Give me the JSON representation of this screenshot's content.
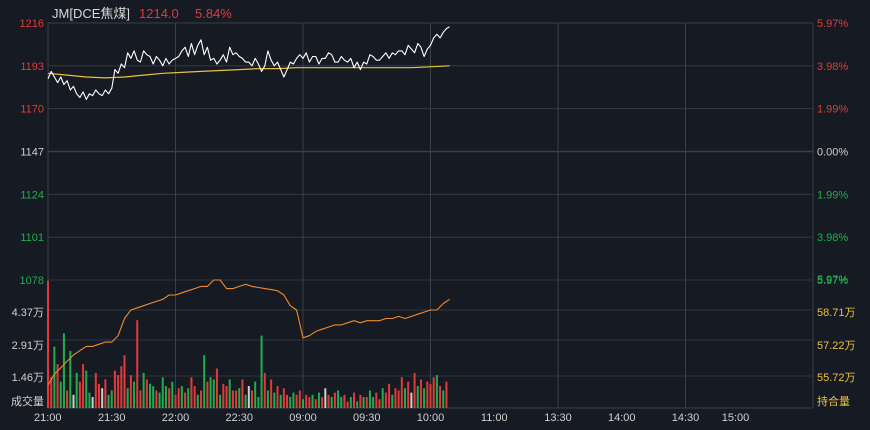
{
  "header": {
    "symbol": "JM[DCE焦煤]",
    "price": "1214.0",
    "change_pct": "5.84%"
  },
  "colors": {
    "background": "#161a22",
    "grid": "#3a3f48",
    "up": "#e03a3a",
    "down": "#1fae4e",
    "neutral": "#cfcfcf",
    "price_line": "#ffffff",
    "avg_line": "#e8c23a",
    "oi_line": "#f08a2c",
    "volume_label": "#d0d0d0",
    "oi_label": "#e8c23a"
  },
  "chart_data": [
    {
      "type": "line",
      "panel": "price",
      "y_ticks_left": [
        "1216",
        "1193",
        "1170",
        "1147",
        "1124",
        "1101",
        "1078"
      ],
      "y_ticks_right": [
        "5.97%",
        "3.98%",
        "1.99%",
        "0.00%",
        "1.99%",
        "3.98%",
        "5.97%"
      ],
      "ylim": [
        1078,
        1216
      ],
      "reference_price": 1147,
      "x_tick_labels": [
        "21:00",
        "21:30",
        "22:00",
        "22:30",
        "09:00",
        "09:30",
        "10:00",
        "11:00",
        "13:30",
        "14:00",
        "14:30",
        "15:00"
      ],
      "x_session_count": 12,
      "x_end": 6.3,
      "series": [
        {
          "role": "price",
          "x": [
            0,
            0.05,
            0.1,
            0.15,
            0.2,
            0.25,
            0.3,
            0.35,
            0.4,
            0.45,
            0.5,
            0.55,
            0.6,
            0.65,
            0.7,
            0.75,
            0.8,
            0.85,
            0.9,
            0.95,
            1.0,
            1.05,
            1.1,
            1.15,
            1.2,
            1.25,
            1.3,
            1.35,
            1.4,
            1.45,
            1.5,
            1.55,
            1.6,
            1.65,
            1.7,
            1.75,
            1.8,
            1.85,
            1.9,
            1.95,
            2.0,
            2.05,
            2.1,
            2.15,
            2.2,
            2.25,
            2.3,
            2.35,
            2.4,
            2.45,
            2.5,
            2.55,
            2.6,
            2.65,
            2.7,
            2.75,
            2.8,
            2.85,
            2.9,
            2.95,
            3.0,
            3.05,
            3.1,
            3.15,
            3.2,
            3.25,
            3.3,
            3.35,
            3.4,
            3.45,
            3.5,
            3.55,
            3.6,
            3.65,
            3.7,
            3.75,
            3.8,
            3.85,
            3.9,
            3.95,
            4.0,
            4.05,
            4.1,
            4.15,
            4.2,
            4.25,
            4.3,
            4.35,
            4.4,
            4.45,
            4.5,
            4.55,
            4.6,
            4.65,
            4.7,
            4.75,
            4.8,
            4.85,
            4.9,
            4.95,
            5.0,
            5.05,
            5.1,
            5.15,
            5.2,
            5.25,
            5.3,
            5.35,
            5.4,
            5.45,
            5.5,
            5.55,
            5.6,
            5.65,
            5.7,
            5.75,
            5.8,
            5.85,
            5.9,
            5.95,
            6.0,
            6.05,
            6.1,
            6.15,
            6.2,
            6.25,
            6.3
          ],
          "values": [
            1186,
            1190,
            1187,
            1184,
            1187,
            1183,
            1185,
            1180,
            1182,
            1178,
            1176,
            1179,
            1175,
            1178,
            1177,
            1180,
            1178,
            1177,
            1180,
            1178,
            1181,
            1191,
            1189,
            1194,
            1192,
            1200,
            1197,
            1201,
            1196,
            1195,
            1201,
            1199,
            1198,
            1194,
            1198,
            1196,
            1193,
            1197,
            1194,
            1196,
            1197,
            1198,
            1201,
            1203,
            1198,
            1205,
            1199,
            1204,
            1207,
            1199,
            1203,
            1196,
            1197,
            1194,
            1196,
            1199,
            1195,
            1203,
            1199,
            1200,
            1198,
            1197,
            1195,
            1195,
            1193,
            1197,
            1194,
            1190,
            1193,
            1201,
            1196,
            1193,
            1195,
            1191,
            1187,
            1191,
            1195,
            1194,
            1197,
            1199,
            1197,
            1200,
            1195,
            1198,
            1198,
            1194,
            1197,
            1197,
            1200,
            1199,
            1195,
            1195,
            1198,
            1196,
            1195,
            1197,
            1192,
            1195,
            1191,
            1195,
            1194,
            1199,
            1198,
            1196,
            1196,
            1198,
            1200,
            1197,
            1200,
            1199,
            1201,
            1201,
            1199,
            1204,
            1202,
            1200,
            1205,
            1203,
            1198,
            1202,
            1204,
            1208,
            1210,
            1208,
            1211,
            1213,
            1214
          ]
        },
        {
          "role": "average",
          "x": [
            0,
            0.3,
            0.6,
            0.9,
            1.2,
            1.5,
            1.8,
            2.1,
            2.4,
            2.7,
            3.0,
            3.3,
            3.6,
            3.9,
            4.2,
            4.5,
            4.8,
            5.1,
            5.4,
            5.7,
            6.0,
            6.3
          ],
          "values": [
            1189,
            1188,
            1187,
            1186.5,
            1187,
            1188,
            1189,
            1189.5,
            1190,
            1190.5,
            1191,
            1191.5,
            1191.5,
            1192,
            1192,
            1192,
            1192,
            1192,
            1192,
            1192,
            1192.5,
            1193
          ]
        }
      ]
    },
    {
      "type": "bar",
      "panel": "volume",
      "y_ticks_left": [
        "4.37万",
        "2.91万",
        "1.46万",
        "成交量"
      ],
      "y_ticks_right": [
        "5.97%",
        "58.71万",
        "57.22万",
        "55.72万",
        "持合量"
      ],
      "volume_max": 58300,
      "oi_range": [
        54220,
        60200
      ],
      "series": [
        {
          "role": "volume",
          "x": [
            0,
            0.05,
            0.1,
            0.15,
            0.2,
            0.25,
            0.3,
            0.35,
            0.4,
            0.45,
            0.5,
            0.55,
            0.6,
            0.65,
            0.7,
            0.75,
            0.8,
            0.85,
            0.9,
            0.95,
            1.0,
            1.05,
            1.1,
            1.15,
            1.2,
            1.25,
            1.3,
            1.35,
            1.4,
            1.45,
            1.5,
            1.55,
            1.6,
            1.65,
            1.7,
            1.75,
            1.8,
            1.85,
            1.9,
            1.95,
            2.0,
            2.05,
            2.1,
            2.15,
            2.2,
            2.25,
            2.3,
            2.35,
            2.4,
            2.45,
            2.5,
            2.55,
            2.6,
            2.65,
            2.7,
            2.75,
            2.8,
            2.85,
            2.9,
            2.95,
            3.0,
            3.05,
            3.1,
            3.15,
            3.2,
            3.25,
            3.3,
            3.35,
            3.4,
            3.45,
            3.5,
            3.55,
            3.6,
            3.65,
            3.7,
            3.75,
            3.8,
            3.85,
            3.9,
            3.95,
            4.0,
            4.05,
            4.1,
            4.15,
            4.2,
            4.25,
            4.3,
            4.35,
            4.4,
            4.45,
            4.5,
            4.55,
            4.6,
            4.65,
            4.7,
            4.75,
            4.8,
            4.85,
            4.9,
            4.95,
            5.0,
            5.05,
            5.1,
            5.15,
            5.2,
            5.25,
            5.3,
            5.35,
            5.4,
            5.45,
            5.5,
            5.55,
            5.6,
            5.65,
            5.7,
            5.75,
            5.8,
            5.85,
            5.9,
            5.95,
            6.0,
            6.05,
            6.1,
            6.15,
            6.2,
            6.25
          ],
          "values": [
            58000,
            14000,
            28000,
            20000,
            12000,
            34000,
            8000,
            26000,
            6000,
            16000,
            12000,
            20000,
            17000,
            7000,
            5000,
            16000,
            11000,
            9000,
            13000,
            6000,
            8000,
            17000,
            15000,
            19000,
            24000,
            9000,
            15000,
            12000,
            40000,
            8000,
            16000,
            13000,
            11000,
            10000,
            8000,
            7000,
            14000,
            10000,
            9000,
            12000,
            6000,
            9000,
            10000,
            7000,
            9000,
            14000,
            10000,
            6000,
            8000,
            24000,
            12000,
            14000,
            13000,
            18000,
            6000,
            11000,
            10000,
            13000,
            8000,
            8000,
            9000,
            13000,
            6000,
            10000,
            8000,
            12000,
            5000,
            33000,
            16000,
            8000,
            13000,
            7000,
            10000,
            6000,
            9000,
            6000,
            5000,
            7000,
            6000,
            8000,
            4000,
            6000,
            5000,
            6000,
            4000,
            7000,
            5000,
            9000,
            6000,
            5000,
            7000,
            8000,
            5000,
            6000,
            3000,
            5000,
            7000,
            3000,
            6000,
            5000,
            5000,
            8000,
            5000,
            7000,
            4000,
            9000,
            7000,
            11000,
            6000,
            9000,
            8000,
            14000,
            9000,
            12000,
            7000,
            16000,
            10000,
            13000,
            9000,
            12000,
            11000,
            14000,
            15000,
            10000,
            8000,
            12000
          ],
          "colors": [
            "up",
            "up",
            "down",
            "up",
            "down",
            "down",
            "up",
            "down",
            "neutral",
            "down",
            "up",
            "up",
            "down",
            "down",
            "neutral",
            "up",
            "up",
            "neutral",
            "up",
            "down",
            "down",
            "up",
            "up",
            "up",
            "up",
            "down",
            "up",
            "down",
            "up",
            "up",
            "down",
            "up",
            "down",
            "down",
            "up",
            "down",
            "down",
            "down",
            "up",
            "down",
            "up",
            "up",
            "down",
            "up",
            "down",
            "up",
            "up",
            "down",
            "up",
            "down",
            "up",
            "down",
            "down",
            "up",
            "down",
            "up",
            "up",
            "down",
            "up",
            "up",
            "down",
            "up",
            "down",
            "neutral",
            "up",
            "down",
            "down",
            "down",
            "up",
            "down",
            "up",
            "down",
            "up",
            "down",
            "up",
            "up",
            "down",
            "down",
            "up",
            "up",
            "down",
            "up",
            "up",
            "down",
            "up",
            "down",
            "up",
            "neutral",
            "up",
            "down",
            "up",
            "down",
            "down",
            "up",
            "up",
            "down",
            "up",
            "down",
            "up",
            "down",
            "up",
            "down",
            "down",
            "up",
            "up",
            "down",
            "up",
            "up",
            "down",
            "up",
            "up",
            "up",
            "down",
            "up",
            "neutral",
            "up",
            "down",
            "up",
            "down",
            "up",
            "up",
            "up",
            "down",
            "up",
            "down",
            "up"
          ]
        },
        {
          "role": "open_interest",
          "x": [
            0,
            0.1,
            0.2,
            0.3,
            0.4,
            0.5,
            0.6,
            0.7,
            0.8,
            0.9,
            1.0,
            1.1,
            1.2,
            1.3,
            1.4,
            1.5,
            1.6,
            1.7,
            1.8,
            1.9,
            2.0,
            2.1,
            2.2,
            2.3,
            2.4,
            2.5,
            2.6,
            2.7,
            2.8,
            2.9,
            3.0,
            3.05,
            3.1,
            3.2,
            3.3,
            3.4,
            3.5,
            3.6,
            3.7,
            3.8,
            3.9,
            4.0,
            4.1,
            4.2,
            4.3,
            4.4,
            4.5,
            4.6,
            4.7,
            4.8,
            4.9,
            5.0,
            5.1,
            5.2,
            5.3,
            5.4,
            5.5,
            5.6,
            5.7,
            5.8,
            5.9,
            6.0,
            6.1,
            6.2,
            6.3
          ],
          "values": [
            55300,
            55800,
            56100,
            56400,
            56700,
            56900,
            57100,
            57100,
            57200,
            57300,
            57300,
            57600,
            58400,
            58800,
            58900,
            59000,
            59100,
            59200,
            59300,
            59500,
            59500,
            59600,
            59700,
            59800,
            59900,
            59900,
            60200,
            60200,
            59800,
            59800,
            59900,
            59950,
            60000,
            59900,
            59850,
            59800,
            59750,
            59700,
            59500,
            59000,
            58800,
            57500,
            57600,
            57800,
            57900,
            58000,
            58100,
            58100,
            58200,
            58300,
            58200,
            58300,
            58300,
            58300,
            58400,
            58400,
            58500,
            58400,
            58500,
            58600,
            58700,
            58800,
            58800,
            59100,
            59300
          ]
        }
      ]
    }
  ]
}
